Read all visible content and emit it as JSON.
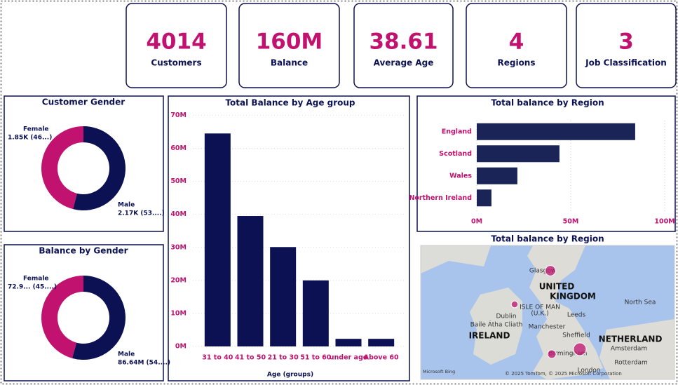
{
  "kpis": [
    {
      "value": "4014",
      "label": "Customers"
    },
    {
      "value": "160M",
      "label": "Balance"
    },
    {
      "value": "38.61",
      "label": "Average Age"
    },
    {
      "value": "4",
      "label": "Regions"
    },
    {
      "value": "3",
      "label": "Job Classification"
    }
  ],
  "chart_data": [
    {
      "type": "donut",
      "title": "Customer Gender",
      "categories": [
        "Female",
        "Male"
      ],
      "values": [
        1850,
        2170
      ],
      "value_labels": [
        "1.85K (46...)",
        "2.17K (53....)"
      ],
      "colors": [
        "#c2126f",
        "#0b1152"
      ]
    },
    {
      "type": "donut",
      "title": "Balance by Gender",
      "categories": [
        "Female",
        "Male"
      ],
      "values": [
        72900000,
        86640000
      ],
      "value_labels": [
        "72.9... (45....)",
        "86.64M (54....)"
      ],
      "colors": [
        "#c2126f",
        "#0b1152"
      ]
    },
    {
      "type": "bar",
      "title": "Total Balance by Age group",
      "x_label": "Age (groups)",
      "categories": [
        "31 to 40",
        "41 to 50",
        "21 to 30",
        "51 to 60",
        "under age",
        "Above 60"
      ],
      "values": [
        64500000,
        39500000,
        30100000,
        20000000,
        2300000,
        2300000
      ],
      "color": "#0b1152",
      "ylim": [
        0,
        72000000
      ],
      "yticks": [
        {
          "value": 0,
          "label": "0M"
        },
        {
          "value": 10000000,
          "label": "10M"
        },
        {
          "value": 20000000,
          "label": "20M"
        },
        {
          "value": 30000000,
          "label": "30M"
        },
        {
          "value": 40000000,
          "label": "40M"
        },
        {
          "value": 50000000,
          "label": "50M"
        },
        {
          "value": 60000000,
          "label": "60M"
        },
        {
          "value": 70000000,
          "label": "70M"
        }
      ],
      "grid": true
    },
    {
      "type": "hbar",
      "title": "Total balance by Region",
      "categories": [
        "England",
        "Scotland",
        "Wales",
        "Northern Ireland"
      ],
      "values": [
        84300000,
        44000000,
        21600000,
        7800000
      ],
      "color": "#1a2456",
      "xlim": [
        0,
        100000000
      ],
      "xticks": [
        {
          "value": 0,
          "label": "0M"
        },
        {
          "value": 50000000,
          "label": "50M"
        },
        {
          "value": 100000000,
          "label": "100M"
        }
      ],
      "grid": true
    },
    {
      "type": "map",
      "title": "Total balance by Region",
      "categories": [
        "England",
        "Scotland",
        "Wales",
        "Northern Ireland"
      ],
      "values": [
        84300000,
        44000000,
        21600000,
        7800000
      ],
      "color": "#c2126f",
      "place_labels": [
        "UNITED",
        "KINGDOM",
        "IRELAND",
        "NETHERLAND",
        "North Sea",
        "ISLE OF MAN",
        "(U.K.)",
        "Glasgow",
        "Dublin",
        "Baile Átha Cliath",
        "Manchester",
        "Leeds",
        "Sheffield",
        "Birmingham",
        "Amsterdam",
        "Rotterdam",
        "London"
      ],
      "attribution": "© 2025 TomTom, © 2025 Microsoft Corporation",
      "provider": "Microsoft Bing"
    }
  ]
}
